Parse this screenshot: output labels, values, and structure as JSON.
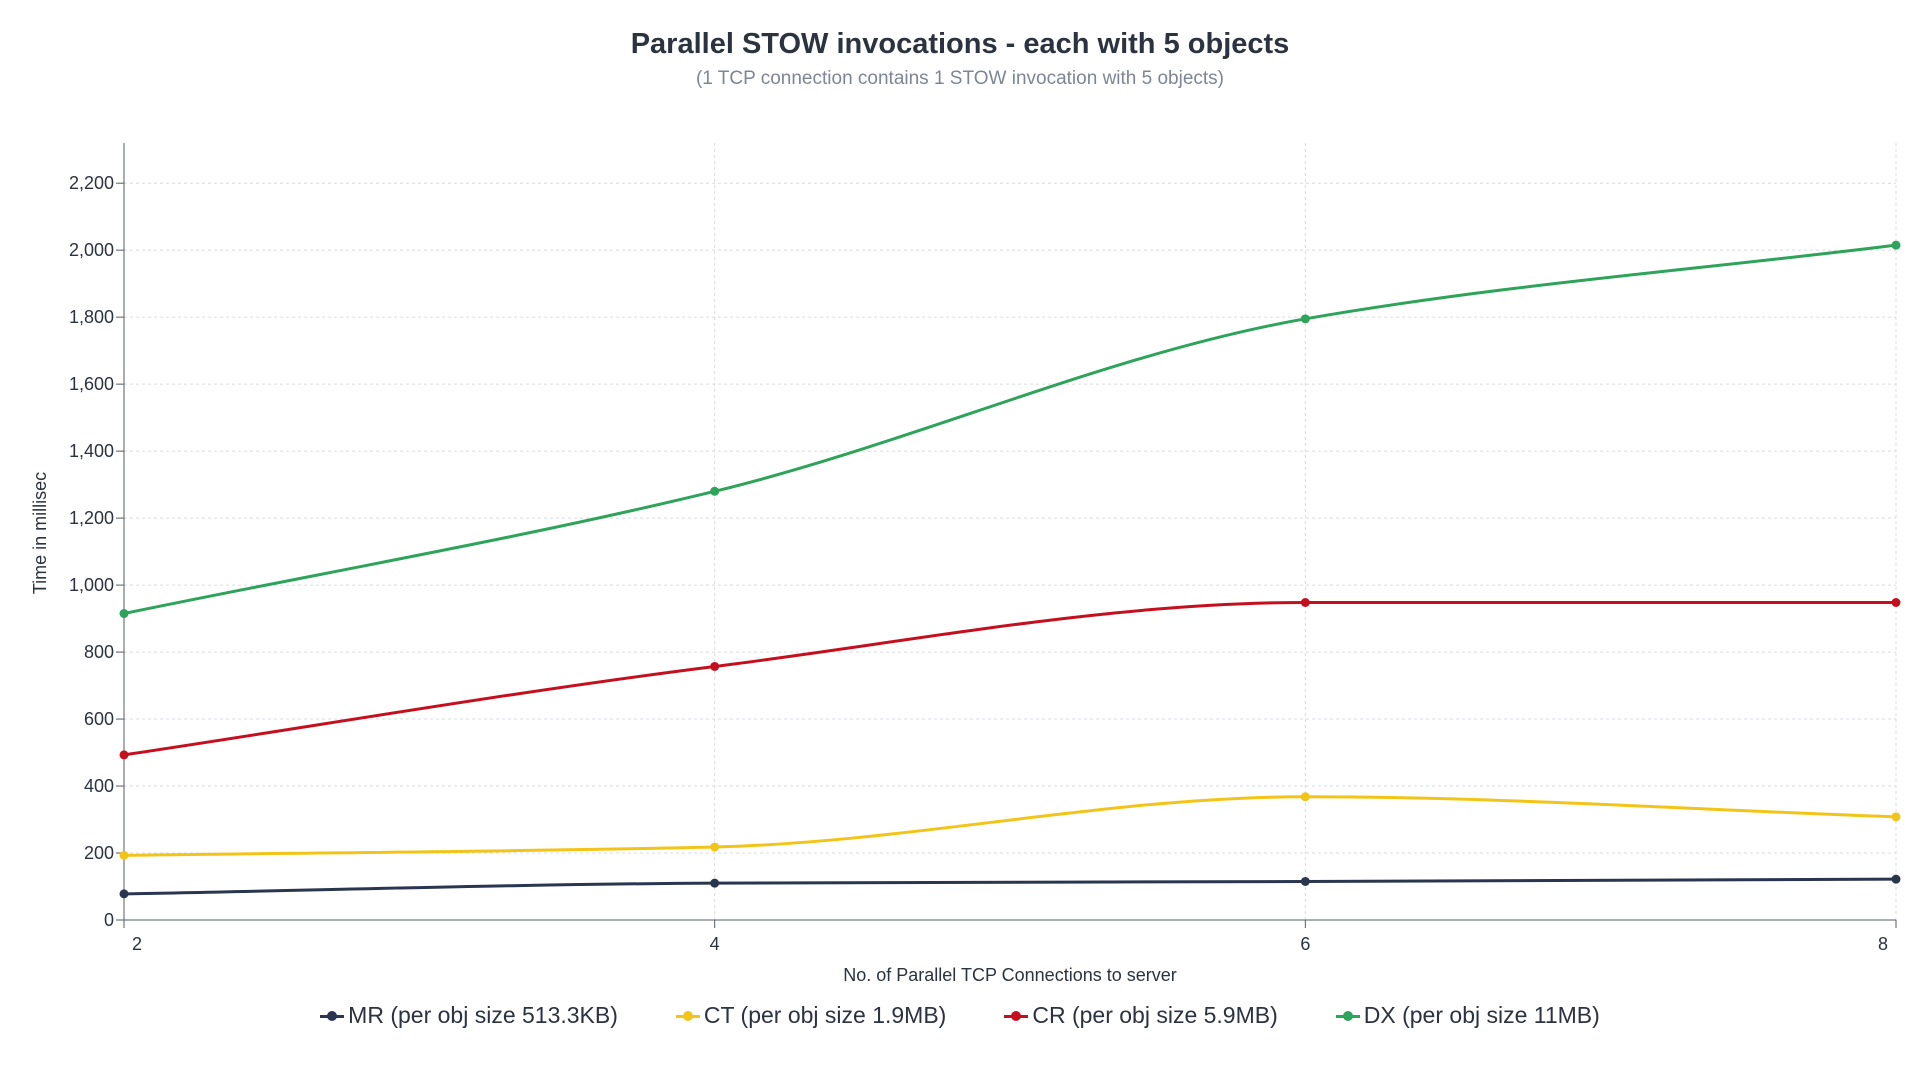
{
  "chart_data": {
    "type": "line",
    "title": "Parallel STOW invocations - each with 5 objects",
    "subtitle": "(1 TCP connection contains 1 STOW invocation with 5 objects)",
    "xlabel": "No. of Parallel TCP Connections to server",
    "ylabel": "Time in millisec",
    "x": [
      2,
      4,
      6,
      8
    ],
    "x_tick_labels": [
      "2",
      "4",
      "6",
      "8"
    ],
    "xlim": [
      2,
      8
    ],
    "ylim": [
      0,
      2320
    ],
    "y_ticks": [
      0,
      200,
      400,
      600,
      800,
      1000,
      1200,
      1400,
      1600,
      1800,
      2000,
      2200
    ],
    "y_tick_labels": [
      "0",
      "200",
      "400",
      "600",
      "800",
      "1,000",
      "1,200",
      "1,400",
      "1,600",
      "1,800",
      "2,000",
      "2,200"
    ],
    "grid": true,
    "legend_position": "bottom-center",
    "series": [
      {
        "name": "MR (per obj size 513.3KB)",
        "color": "#2a3650",
        "values": [
          78,
          110,
          115,
          122
        ]
      },
      {
        "name": "CT (per obj size 1.9MB)",
        "color": "#f2c418",
        "values": [
          193,
          218,
          368,
          308
        ]
      },
      {
        "name": "CR (per obj size 5.9MB)",
        "color": "#c4101e",
        "values": [
          493,
          757,
          948,
          948
        ]
      },
      {
        "name": "DX (per obj size 11MB)",
        "color": "#2ea35a",
        "values": [
          915,
          1280,
          1795,
          2015
        ]
      }
    ]
  }
}
